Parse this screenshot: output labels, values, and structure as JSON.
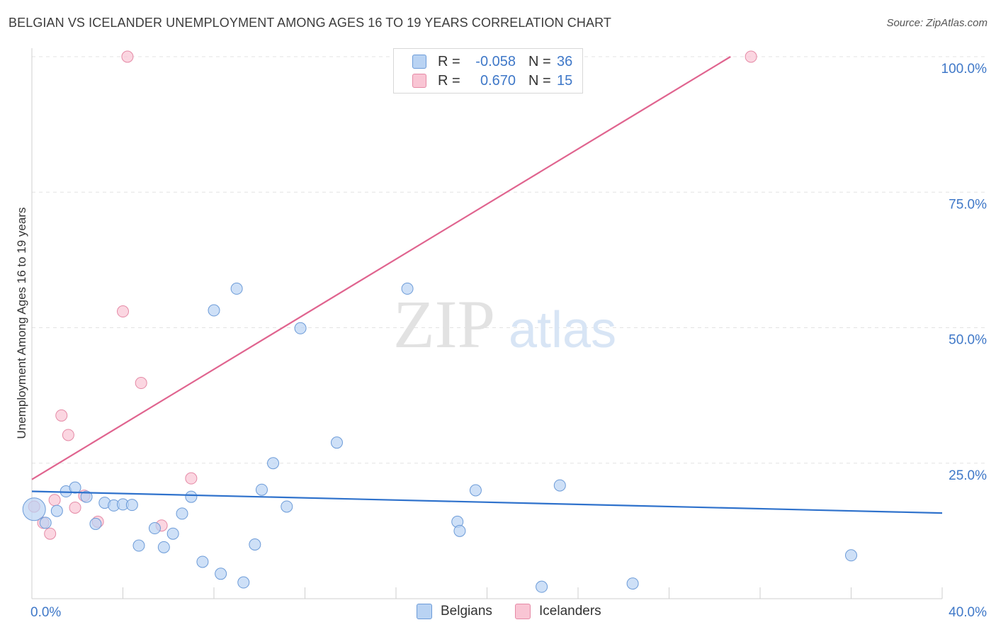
{
  "header": {
    "title": "BELGIAN VS ICELANDER UNEMPLOYMENT AMONG AGES 16 TO 19 YEARS CORRELATION CHART",
    "source": "Source: ZipAtlas.com"
  },
  "watermark": {
    "zip": "ZIP",
    "atlas": "atlas"
  },
  "legend": {
    "belgians": {
      "r_label": "R =",
      "r_value": "-0.058",
      "n_label": "N =",
      "n_value": "36"
    },
    "icelanders": {
      "r_label": "R =",
      "r_value": "0.670",
      "n_label": "N =",
      "n_value": "15"
    }
  },
  "colors": {
    "belgian_fill": "#b9d3f3",
    "belgian_stroke": "#6c9bd8",
    "belgian_line": "#2f72cc",
    "icelander_fill": "#f9c5d4",
    "icelander_stroke": "#e58aa6",
    "icelander_line": "#e0648f",
    "axis_text": "#3f78c8"
  },
  "chart_data": {
    "type": "scatter",
    "title": "BELGIAN VS ICELANDER UNEMPLOYMENT AMONG AGES 16 TO 19 YEARS CORRELATION CHART",
    "xlabel": "",
    "ylabel": "Unemployment Among Ages 16 to 19 years",
    "xlim": [
      0,
      40
    ],
    "ylim": [
      0,
      100
    ],
    "x_tick_labels": [
      "0.0%",
      "40.0%"
    ],
    "y_tick_values": [
      25,
      50,
      75,
      100
    ],
    "y_tick_labels": [
      "25.0%",
      "50.0%",
      "75.0%",
      "100.0%"
    ],
    "grid": true,
    "legend_position": "bottom",
    "series": [
      {
        "name": "Belgians",
        "r": -0.058,
        "n": 36,
        "trend": {
          "x": [
            0,
            40
          ],
          "y": [
            19.8,
            15.8
          ]
        },
        "points": [
          {
            "x": 0.1,
            "y": 16.5,
            "big": true
          },
          {
            "x": 0.6,
            "y": 14.0
          },
          {
            "x": 1.1,
            "y": 16.2
          },
          {
            "x": 1.5,
            "y": 19.8
          },
          {
            "x": 1.9,
            "y": 20.5
          },
          {
            "x": 2.4,
            "y": 18.8
          },
          {
            "x": 2.8,
            "y": 13.8
          },
          {
            "x": 3.2,
            "y": 17.7
          },
          {
            "x": 3.6,
            "y": 17.2
          },
          {
            "x": 4.0,
            "y": 17.4
          },
          {
            "x": 4.4,
            "y": 17.3
          },
          {
            "x": 4.7,
            "y": 9.8
          },
          {
            "x": 5.4,
            "y": 13.0
          },
          {
            "x": 5.8,
            "y": 9.5
          },
          {
            "x": 6.2,
            "y": 12.0
          },
          {
            "x": 6.6,
            "y": 15.7
          },
          {
            "x": 7.0,
            "y": 18.8
          },
          {
            "x": 7.5,
            "y": 6.8
          },
          {
            "x": 8.0,
            "y": 53.2
          },
          {
            "x": 8.3,
            "y": 4.6
          },
          {
            "x": 9.0,
            "y": 57.2
          },
          {
            "x": 9.3,
            "y": 3.0
          },
          {
            "x": 9.8,
            "y": 10.0
          },
          {
            "x": 10.1,
            "y": 20.1
          },
          {
            "x": 10.6,
            "y": 25.0
          },
          {
            "x": 11.2,
            "y": 17.0
          },
          {
            "x": 11.8,
            "y": 49.9
          },
          {
            "x": 13.4,
            "y": 28.8
          },
          {
            "x": 16.5,
            "y": 57.2
          },
          {
            "x": 18.7,
            "y": 14.2
          },
          {
            "x": 18.8,
            "y": 12.5
          },
          {
            "x": 19.5,
            "y": 20.0
          },
          {
            "x": 22.4,
            "y": 2.2
          },
          {
            "x": 23.2,
            "y": 20.9
          },
          {
            "x": 26.4,
            "y": 2.8
          },
          {
            "x": 36.0,
            "y": 8.0
          }
        ]
      },
      {
        "name": "Icelanders",
        "r": 0.67,
        "n": 15,
        "trend": {
          "x": [
            0,
            30.7
          ],
          "y": [
            22.0,
            100.0
          ]
        },
        "points": [
          {
            "x": 0.1,
            "y": 17.0
          },
          {
            "x": 0.5,
            "y": 14.0
          },
          {
            "x": 0.8,
            "y": 12.0
          },
          {
            "x": 1.0,
            "y": 18.2
          },
          {
            "x": 1.3,
            "y": 33.8
          },
          {
            "x": 1.6,
            "y": 30.2
          },
          {
            "x": 1.9,
            "y": 16.8
          },
          {
            "x": 2.3,
            "y": 19.0
          },
          {
            "x": 2.9,
            "y": 14.2
          },
          {
            "x": 4.0,
            "y": 53.0
          },
          {
            "x": 4.2,
            "y": 100.0
          },
          {
            "x": 4.8,
            "y": 39.8
          },
          {
            "x": 5.7,
            "y": 13.5
          },
          {
            "x": 7.0,
            "y": 22.2
          },
          {
            "x": 31.6,
            "y": 100.0
          }
        ]
      }
    ]
  }
}
